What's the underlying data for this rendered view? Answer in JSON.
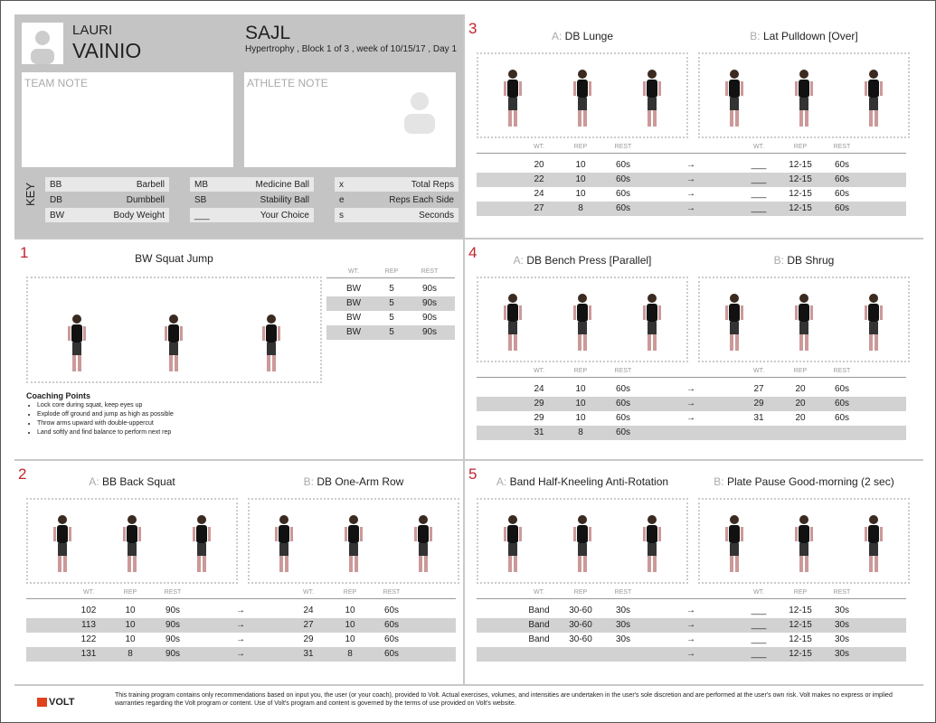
{
  "header": {
    "first_name": "LAURI",
    "last_name": "VAINIO",
    "team": "SAJL",
    "subtitle": "Hypertrophy , Block 1 of 3 , week of 10/15/17 , Day 1",
    "team_note": "TEAM NOTE",
    "athlete_note": "ATHLETE NOTE",
    "key_label": "KEY",
    "key": [
      {
        "k": "BB",
        "v": "Barbell"
      },
      {
        "k": "DB",
        "v": "Dumbbell"
      },
      {
        "k": "BW",
        "v": "Body Weight"
      },
      {
        "k": "MB",
        "v": "Medicine Ball"
      },
      {
        "k": "SB",
        "v": "Stability Ball"
      },
      {
        "k": "___",
        "v": "Your Choice"
      },
      {
        "k": "x",
        "v": "Total Reps"
      },
      {
        "k": "e",
        "v": "Reps Each Side"
      },
      {
        "k": "s",
        "v": "Seconds"
      }
    ]
  },
  "col_headers": [
    "WT.",
    "REP",
    "REST"
  ],
  "arrow": "→",
  "section1": {
    "num": "1",
    "name": "BW Squat Jump",
    "rows": [
      [
        "BW",
        "5",
        "90s"
      ],
      [
        "BW",
        "5",
        "90s"
      ],
      [
        "BW",
        "5",
        "90s"
      ],
      [
        "BW",
        "5",
        "90s"
      ]
    ],
    "coaching_title": "Coaching Points",
    "coaching": [
      "Lock core during squat, keep eyes up",
      "Explode off ground and jump as high as possible",
      "Throw arms upward with double-uppercut",
      "Land softly and find balance to perform next rep"
    ]
  },
  "sections": [
    {
      "num": "3",
      "a_prefix": "A:",
      "a_name": "DB Lunge",
      "b_prefix": "B:",
      "b_name": "Lat Pulldown [Over]",
      "rows": [
        {
          "a": [
            "20",
            "10",
            "60s"
          ],
          "b": [
            "___",
            "12-15",
            "60s"
          ]
        },
        {
          "a": [
            "22",
            "10",
            "60s"
          ],
          "b": [
            "___",
            "12-15",
            "60s"
          ]
        },
        {
          "a": [
            "24",
            "10",
            "60s"
          ],
          "b": [
            "___",
            "12-15",
            "60s"
          ]
        },
        {
          "a": [
            "27",
            "8",
            "60s"
          ],
          "b": [
            "___",
            "12-15",
            "60s"
          ]
        }
      ]
    },
    {
      "num": "4",
      "a_prefix": "A:",
      "a_name": "DB Bench Press [Parallel]",
      "b_prefix": "B:",
      "b_name": "DB Shrug",
      "rows": [
        {
          "a": [
            "24",
            "10",
            "60s"
          ],
          "b": [
            "27",
            "20",
            "60s"
          ]
        },
        {
          "a": [
            "29",
            "10",
            "60s"
          ],
          "b": [
            "29",
            "20",
            "60s"
          ]
        },
        {
          "a": [
            "29",
            "10",
            "60s"
          ],
          "b": [
            "31",
            "20",
            "60s"
          ]
        },
        {
          "a": [
            "31",
            "8",
            "60s"
          ],
          "b": null
        }
      ]
    },
    {
      "num": "2",
      "a_prefix": "A:",
      "a_name": "BB Back Squat",
      "b_prefix": "B:",
      "b_name": "DB One-Arm Row",
      "rows": [
        {
          "a": [
            "102",
            "10",
            "90s"
          ],
          "b": [
            "24",
            "10",
            "60s"
          ]
        },
        {
          "a": [
            "113",
            "10",
            "90s"
          ],
          "b": [
            "27",
            "10",
            "60s"
          ]
        },
        {
          "a": [
            "122",
            "10",
            "90s"
          ],
          "b": [
            "29",
            "10",
            "60s"
          ]
        },
        {
          "a": [
            "131",
            "8",
            "90s"
          ],
          "b": [
            "31",
            "8",
            "60s"
          ]
        }
      ]
    },
    {
      "num": "5",
      "a_prefix": "A:",
      "a_name": "Band Half-Kneeling Anti-Rotation",
      "b_prefix": "B:",
      "b_name": "Plate Pause Good-morning (2 sec)",
      "rows": [
        {
          "a": [
            "Band",
            "30-60",
            "30s"
          ],
          "b": [
            "___",
            "12-15",
            "30s"
          ]
        },
        {
          "a": [
            "Band",
            "30-60",
            "30s"
          ],
          "b": [
            "___",
            "12-15",
            "30s"
          ]
        },
        {
          "a": [
            "Band",
            "30-60",
            "30s"
          ],
          "b": [
            "___",
            "12-15",
            "30s"
          ]
        },
        {
          "a": null,
          "b": [
            "___",
            "12-15",
            "30s"
          ]
        }
      ]
    }
  ],
  "footer": {
    "logo": "VOLT",
    "disclaimer": "This training program contains only recommendations based on input you, the user (or your coach), provided to Volt. Actual exercises, volumes, and intensities are undertaken in the user's sole discretion and are performed at the user's own risk. Volt makes no express or implied warranties regarding the Volt program or content. Use of Volt's program and content is governed by the terms of use provided on Volt's website."
  },
  "colors": {
    "accent": "#c0262d",
    "header_bg": "#c4c4c4",
    "row_alt": "#d2d2d2"
  }
}
